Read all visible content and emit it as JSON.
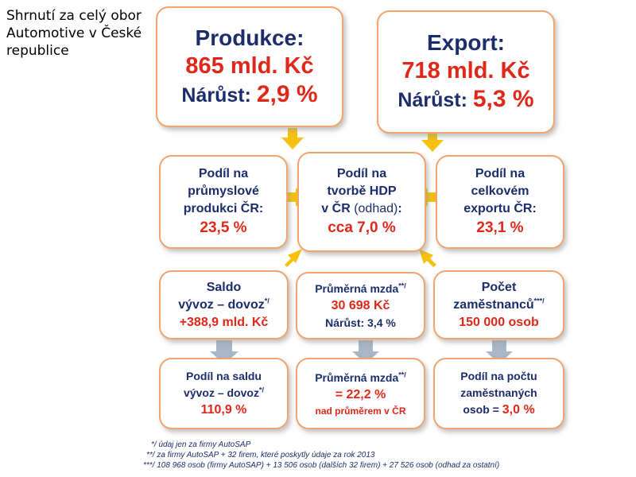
{
  "title": "Shrnutí za celý obor Automotive v České republice",
  "production": {
    "label": "Produkce:",
    "value": "865 mld. Kč",
    "growth_label": "Nárůst:",
    "growth_value": "2,9 %"
  },
  "export": {
    "label": "Export:",
    "value": "718 mld. Kč",
    "growth_label": "Nárůst:",
    "growth_value": "5,3 %"
  },
  "share_industry": {
    "line1": "Podíl na",
    "line2": "průmyslové",
    "line3": "produkci ČR:",
    "value": "23,5 %"
  },
  "share_gdp": {
    "line1": "Podíl na",
    "line2": "tvorbě HDP",
    "line3_a": "v ČR",
    "line3_b": "(odhad)",
    "line3_c": ":",
    "value": "cca 7,0 %"
  },
  "share_export": {
    "line1": "Podíl na",
    "line2": "celkovém",
    "line3": "exportu ČR:",
    "value": "23,1 %"
  },
  "balance": {
    "line1": "Saldo",
    "line2": "vývoz – dovoz",
    "sup": "*/",
    "value": "+388,9 mld. Kč"
  },
  "wage": {
    "line1": "Průměrná mzda",
    "sup": "**/",
    "value": "30 698 Kč",
    "growth": "Nárůst: 3,4 %"
  },
  "employees": {
    "line1": "Počet",
    "line2": "zaměstnanců",
    "sup": "***/",
    "value": "150 000 osob"
  },
  "balance_share": {
    "line1": "Podíl na saldu",
    "line2": "vývoz – dovoz",
    "sup": "*/",
    "value": "110,9 %"
  },
  "wage_share": {
    "line1": "Průměrná mzda",
    "sup": "**/",
    "value": "= 22,2 %",
    "note": "nad průměrem v ČR"
  },
  "employee_share": {
    "line1": "Podíl na počtu",
    "line2": "zaměstnaných",
    "line3_a": "osob",
    "line3_b": "=",
    "value": "3,0 %"
  },
  "footnotes": [
    "*/ údaj jen za firmy AutoSAP",
    "**/ za firmy AutoSAP + 32 firem, které poskytly údaje za rok 2013",
    "***/ 108 968 osob (firmy AutoSAP) + 13 506 osob (dalších 32 firem) + 27 526 osob (odhad za ostatní)"
  ],
  "colors": {
    "navy": "#1c2d6b",
    "red": "#e0281a",
    "border": "#f0a46e",
    "arrow_yellow": "#f5c10e",
    "arrow_gray": "#a9b6c8"
  }
}
